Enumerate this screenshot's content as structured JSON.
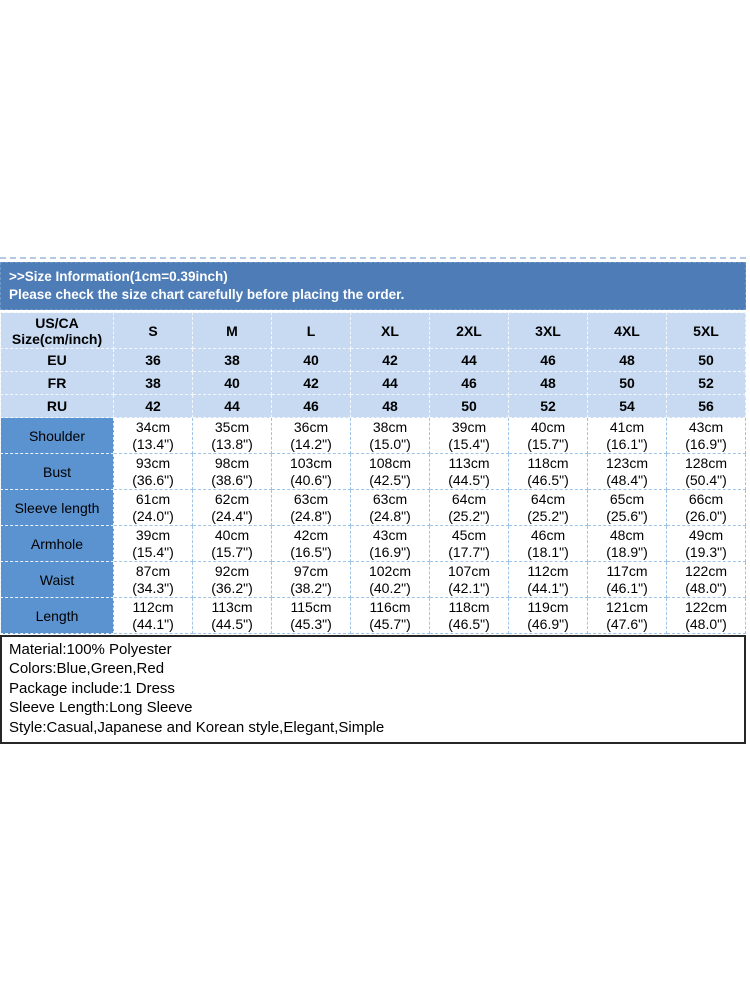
{
  "header": {
    "title": ">>Size Information(1cm=0.39inch)",
    "subtitle": "Please check the size chart carefully before placing the order."
  },
  "size_table": {
    "corner_label_line1": "US/CA",
    "corner_label_line2": "Size(cm/inch)",
    "sizes": [
      "S",
      "M",
      "L",
      "XL",
      "2XL",
      "3XL",
      "4XL",
      "5XL"
    ],
    "conversion_rows": [
      {
        "label": "EU",
        "values": [
          "36",
          "38",
          "40",
          "42",
          "44",
          "46",
          "48",
          "50"
        ]
      },
      {
        "label": "FR",
        "values": [
          "38",
          "40",
          "42",
          "44",
          "46",
          "48",
          "50",
          "52"
        ]
      },
      {
        "label": "RU",
        "values": [
          "42",
          "44",
          "46",
          "48",
          "50",
          "52",
          "54",
          "56"
        ]
      }
    ],
    "measurement_rows": [
      {
        "label": "Shoulder",
        "cells": [
          {
            "cm": "34cm",
            "inch": "(13.4\")"
          },
          {
            "cm": "35cm",
            "inch": "(13.8\")"
          },
          {
            "cm": "36cm",
            "inch": "(14.2\")"
          },
          {
            "cm": "38cm",
            "inch": "(15.0\")"
          },
          {
            "cm": "39cm",
            "inch": "(15.4\")"
          },
          {
            "cm": "40cm",
            "inch": "(15.7\")"
          },
          {
            "cm": "41cm",
            "inch": "(16.1\")"
          },
          {
            "cm": "43cm",
            "inch": "(16.9\")"
          }
        ]
      },
      {
        "label": "Bust",
        "cells": [
          {
            "cm": "93cm",
            "inch": "(36.6\")"
          },
          {
            "cm": "98cm",
            "inch": "(38.6\")"
          },
          {
            "cm": "103cm",
            "inch": "(40.6\")"
          },
          {
            "cm": "108cm",
            "inch": "(42.5\")"
          },
          {
            "cm": "113cm",
            "inch": "(44.5\")"
          },
          {
            "cm": "118cm",
            "inch": "(46.5\")"
          },
          {
            "cm": "123cm",
            "inch": "(48.4\")"
          },
          {
            "cm": "128cm",
            "inch": "(50.4\")"
          }
        ]
      },
      {
        "label": "Sleeve length",
        "cells": [
          {
            "cm": "61cm",
            "inch": "(24.0\")"
          },
          {
            "cm": "62cm",
            "inch": "(24.4\")"
          },
          {
            "cm": "63cm",
            "inch": "(24.8\")"
          },
          {
            "cm": "63cm",
            "inch": "(24.8\")"
          },
          {
            "cm": "64cm",
            "inch": "(25.2\")"
          },
          {
            "cm": "64cm",
            "inch": "(25.2\")"
          },
          {
            "cm": "65cm",
            "inch": "(25.6\")"
          },
          {
            "cm": "66cm",
            "inch": "(26.0\")"
          }
        ]
      },
      {
        "label": "Armhole",
        "cells": [
          {
            "cm": "39cm",
            "inch": "(15.4\")"
          },
          {
            "cm": "40cm",
            "inch": "(15.7\")"
          },
          {
            "cm": "42cm",
            "inch": "(16.5\")"
          },
          {
            "cm": "43cm",
            "inch": "(16.9\")"
          },
          {
            "cm": "45cm",
            "inch": "(17.7\")"
          },
          {
            "cm": "46cm",
            "inch": "(18.1\")"
          },
          {
            "cm": "48cm",
            "inch": "(18.9\")"
          },
          {
            "cm": "49cm",
            "inch": "(19.3\")"
          }
        ]
      },
      {
        "label": "Waist",
        "cells": [
          {
            "cm": "87cm",
            "inch": "(34.3\")"
          },
          {
            "cm": "92cm",
            "inch": "(36.2\")"
          },
          {
            "cm": "97cm",
            "inch": "(38.2\")"
          },
          {
            "cm": "102cm",
            "inch": "(40.2\")"
          },
          {
            "cm": "107cm",
            "inch": "(42.1\")"
          },
          {
            "cm": "112cm",
            "inch": "(44.1\")"
          },
          {
            "cm": "117cm",
            "inch": "(46.1\")"
          },
          {
            "cm": "122cm",
            "inch": "(48.0\")"
          }
        ]
      },
      {
        "label": "Length",
        "cells": [
          {
            "cm": "112cm",
            "inch": "(44.1\")"
          },
          {
            "cm": "113cm",
            "inch": "(44.5\")"
          },
          {
            "cm": "115cm",
            "inch": "(45.3\")"
          },
          {
            "cm": "116cm",
            "inch": "(45.7\")"
          },
          {
            "cm": "118cm",
            "inch": "(46.5\")"
          },
          {
            "cm": "119cm",
            "inch": "(46.9\")"
          },
          {
            "cm": "121cm",
            "inch": "(47.6\")"
          },
          {
            "cm": "122cm",
            "inch": "(48.0\")"
          }
        ]
      }
    ]
  },
  "product_info": {
    "lines": [
      "Material:100% Polyester",
      "Colors:Blue,Green,Red",
      "Package include:1 Dress",
      "Sleeve Length:Long Sleeve",
      "Style:Casual,Japanese and Korean style,Elegant,Simple"
    ]
  },
  "colors": {
    "header_band": "#4d7cb6",
    "band_text": "#ffffff",
    "light_cell": "#c7daf1",
    "measurement_label_cell": "#5b92d0",
    "grid_line_on_white": "#9ec4e8",
    "grid_line_on_blue": "#f3f7fc",
    "info_box_border": "#262626",
    "text": "#000000"
  }
}
